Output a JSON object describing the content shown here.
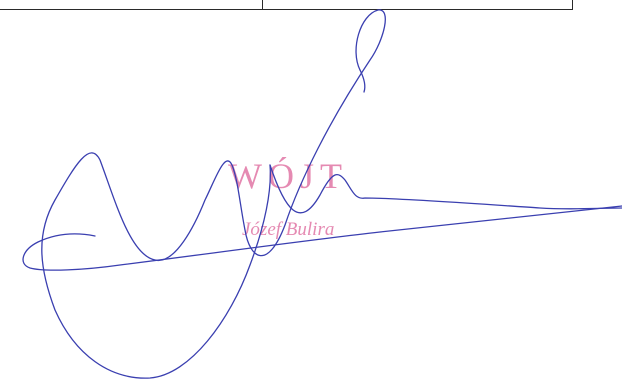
{
  "stamp": {
    "title": "WÓJT",
    "name": "Józef Bulira",
    "color": "#e58ab2"
  },
  "signature": {
    "ink_color": "#3a3fb0"
  }
}
